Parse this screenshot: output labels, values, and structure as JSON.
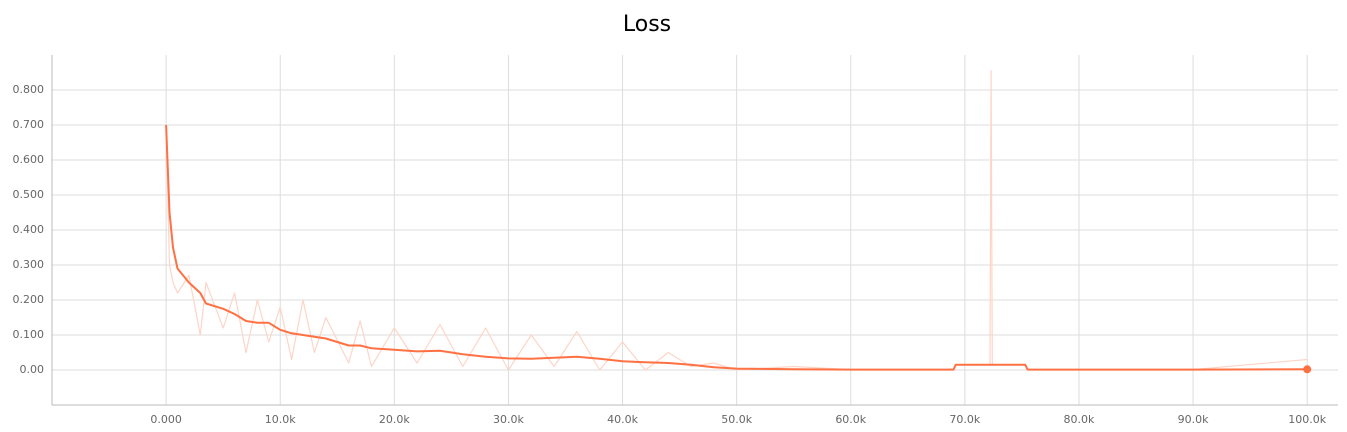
{
  "chart_data": {
    "type": "line",
    "title": "Loss",
    "x": [
      0,
      300,
      600,
      1000,
      2000,
      3000,
      3500,
      5000,
      6000,
      7000,
      8000,
      9000,
      10000,
      11000,
      12000,
      13000,
      14000,
      16000,
      17000,
      18000,
      20000,
      22000,
      24000,
      26000,
      28000,
      30000,
      32000,
      34000,
      36000,
      38000,
      40000,
      42000,
      44000,
      46000,
      48000,
      50000,
      55000,
      60000,
      69000,
      69200,
      72200,
      72300,
      72400,
      75300,
      75500,
      80000,
      90000,
      100000
    ],
    "series": [
      {
        "color": "#ff7043",
        "values": [
          0.7,
          0.45,
          0.35,
          0.29,
          0.25,
          0.22,
          0.19,
          0.175,
          0.16,
          0.14,
          0.135,
          0.135,
          0.115,
          0.105,
          0.1,
          0.095,
          0.09,
          0.07,
          0.07,
          0.062,
          0.058,
          0.053,
          0.055,
          0.045,
          0.038,
          0.033,
          0.032,
          0.035,
          0.038,
          0.032,
          0.025,
          0.022,
          0.02,
          0.015,
          0.008,
          0.004,
          0.002,
          0.001,
          0.001,
          0.015,
          0.015,
          0.015,
          0.015,
          0.015,
          0.001,
          0.001,
          0.001,
          0.002
        ]
      },
      {
        "color": "#fdd5c7",
        "values": [
          0.7,
          0.3,
          0.25,
          0.22,
          0.27,
          0.1,
          0.25,
          0.12,
          0.22,
          0.05,
          0.2,
          0.08,
          0.18,
          0.03,
          0.2,
          0.05,
          0.15,
          0.02,
          0.14,
          0.01,
          0.12,
          0.02,
          0.13,
          0.01,
          0.12,
          0.0,
          0.1,
          0.01,
          0.11,
          0.0,
          0.08,
          0.0,
          0.05,
          0.01,
          0.02,
          0.0,
          0.01,
          0.001,
          0.001,
          0.015,
          0.015,
          0.855,
          0.015,
          0.015,
          0.001,
          0.001,
          0.001,
          0.03
        ]
      }
    ],
    "xlim": [
      -10000,
      102700
    ],
    "ylim": [
      -0.1,
      0.9
    ],
    "xticks": [
      {
        "value": 0,
        "label": "0.000"
      },
      {
        "value": 10000,
        "label": "10.0k"
      },
      {
        "value": 20000,
        "label": "20.0k"
      },
      {
        "value": 30000,
        "label": "30.0k"
      },
      {
        "value": 40000,
        "label": "40.0k"
      },
      {
        "value": 50000,
        "label": "50.0k"
      },
      {
        "value": 60000,
        "label": "60.0k"
      },
      {
        "value": 70000,
        "label": "70.0k"
      },
      {
        "value": 80000,
        "label": "80.0k"
      },
      {
        "value": 90000,
        "label": "90.0k"
      },
      {
        "value": 100000,
        "label": "100.0k"
      }
    ],
    "yticks": [
      {
        "value": 0,
        "label": "0.00"
      },
      {
        "value": 0.1,
        "label": "0.100"
      },
      {
        "value": 0.2,
        "label": "0.200"
      },
      {
        "value": 0.3,
        "label": "0.300"
      },
      {
        "value": 0.4,
        "label": "0.400"
      },
      {
        "value": 0.5,
        "label": "0.500"
      },
      {
        "value": 0.6,
        "label": "0.600"
      },
      {
        "value": 0.7,
        "label": "0.700"
      },
      {
        "value": 0.8,
        "label": "0.800"
      }
    ],
    "grid": true
  }
}
